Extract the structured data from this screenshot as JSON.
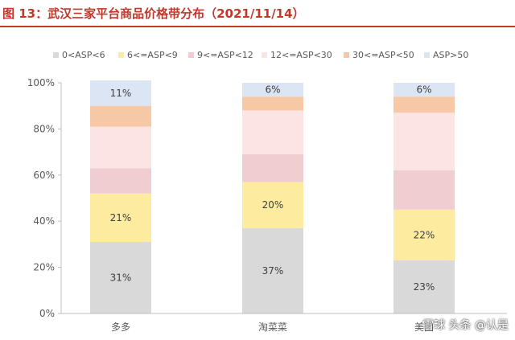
{
  "title": "图 13：武汉三家平台商品价格带分布（2021/11/14）",
  "watermark": "雪球 头条 @认是",
  "colors": {
    "title": "#c0392b",
    "axis_text": "#595959",
    "axis_line": "#bfbfbf",
    "series": [
      "#d9d9d9",
      "#fdeba0",
      "#f0cdd1",
      "#fde4e4",
      "#f7c8a6",
      "#dbe5f4"
    ]
  },
  "chart_data": {
    "type": "bar",
    "stacked": true,
    "categories": [
      "多多",
      "淘菜菜",
      "美团"
    ],
    "series": [
      {
        "name": "0<ASP<6",
        "values": [
          31,
          37,
          23
        ]
      },
      {
        "name": "6<=ASP<9",
        "values": [
          21,
          20,
          22
        ]
      },
      {
        "name": "9<=ASP<12",
        "values": [
          11,
          12,
          17
        ]
      },
      {
        "name": "12<=ASP<30",
        "values": [
          18,
          19,
          25
        ]
      },
      {
        "name": "30<=ASP<50",
        "values": [
          9,
          6,
          7
        ]
      },
      {
        "name": "ASP>50",
        "values": [
          11,
          6,
          6
        ]
      }
    ],
    "data_labels": [
      {
        "series": 0,
        "category": 0,
        "text": "31%"
      },
      {
        "series": 0,
        "category": 1,
        "text": "37%"
      },
      {
        "series": 0,
        "category": 2,
        "text": "23%"
      },
      {
        "series": 1,
        "category": 0,
        "text": "21%"
      },
      {
        "series": 1,
        "category": 1,
        "text": "20%"
      },
      {
        "series": 1,
        "category": 2,
        "text": "22%"
      },
      {
        "series": 5,
        "category": 0,
        "text": "11%"
      },
      {
        "series": 5,
        "category": 1,
        "text": "6%"
      },
      {
        "series": 5,
        "category": 2,
        "text": "6%"
      }
    ],
    "ylim": [
      0,
      100
    ],
    "yticks": [
      "0%",
      "20%",
      "40%",
      "60%",
      "80%",
      "100%"
    ],
    "grid": false,
    "legend_position": "top"
  }
}
